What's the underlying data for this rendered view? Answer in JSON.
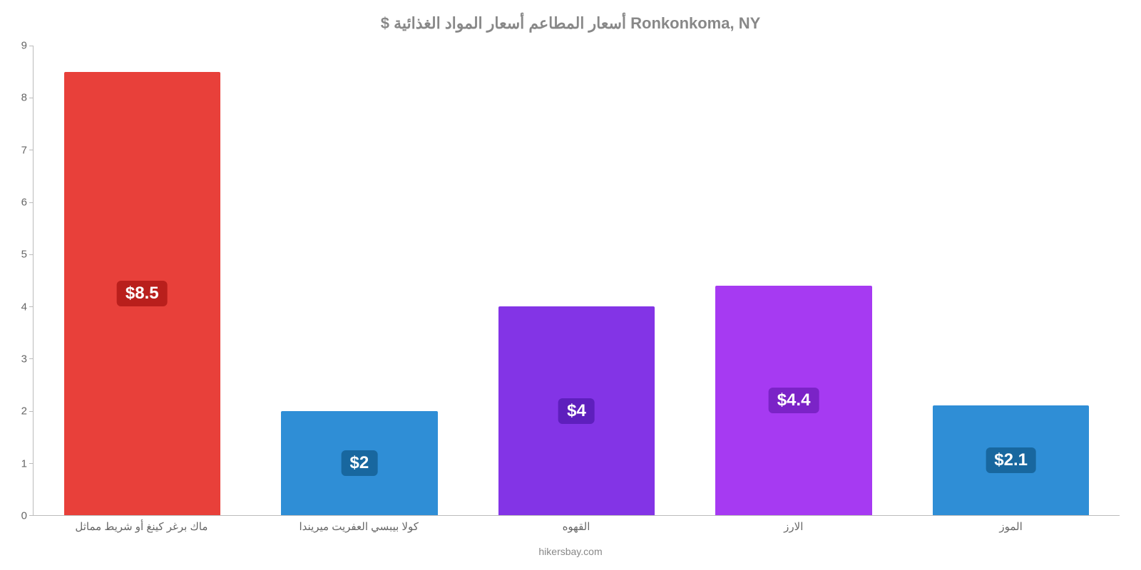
{
  "chart": {
    "type": "bar",
    "title": "$ أسعار المطاعم أسعار المواد الغذائية Ronkonkoma, NY",
    "title_color": "#888888",
    "title_fontsize": 22,
    "credit": "hikersbay.com",
    "credit_color": "#888888",
    "background_color": "#ffffff",
    "axis_color": "#bbbbbb",
    "tick_label_color": "#666666",
    "tick_label_fontsize": 15,
    "ylim": [
      0,
      9
    ],
    "yticks": [
      0,
      1,
      2,
      3,
      4,
      5,
      6,
      7,
      8,
      9
    ],
    "grid": false,
    "bar_width": 0.72,
    "badge_fontsize": 24,
    "badge_text_color": "#ffffff",
    "categories": [
      "ماك برغر كينغ أو شريط مماثل",
      "كولا بيبسي العفريت ميريندا",
      "القهوه",
      "الارز",
      "الموز"
    ],
    "values": [
      8.5,
      2.0,
      4.0,
      4.4,
      2.1
    ],
    "value_labels": [
      "$8.5",
      "$2",
      "$4",
      "$4.4",
      "$2.1"
    ],
    "bar_colors": [
      "#e8403a",
      "#2f8ed6",
      "#8334e6",
      "#a63af2",
      "#2f8ed6"
    ],
    "badge_colors": [
      "#b91f1c",
      "#18679f",
      "#5e1fbd",
      "#7b23c7",
      "#18679f"
    ]
  }
}
